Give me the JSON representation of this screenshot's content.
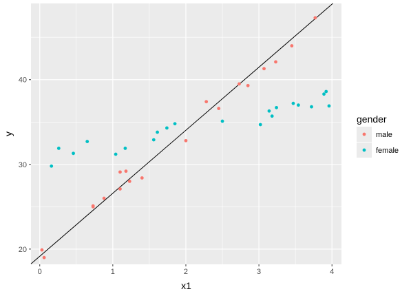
{
  "chart_data": {
    "type": "scatter",
    "xlabel": "x1",
    "ylabel": "y",
    "xlim": [
      -0.12,
      4.13
    ],
    "ylim": [
      18.2,
      49.0
    ],
    "x_ticks": [
      0,
      1,
      2,
      3,
      4
    ],
    "y_ticks": [
      20,
      30,
      40
    ],
    "x_tick_labels": [
      "0",
      "1",
      "2",
      "3",
      "4"
    ],
    "y_tick_labels": [
      "20",
      "30",
      "40"
    ],
    "grid": true,
    "legend": {
      "title": "gender",
      "position": "right"
    },
    "series": [
      {
        "name": "male",
        "color": "#F8766D",
        "points": [
          [
            0.03,
            19.9
          ],
          [
            0.06,
            19.0
          ],
          [
            0.73,
            25.0
          ],
          [
            0.73,
            25.1
          ],
          [
            0.88,
            26.0
          ],
          [
            1.1,
            29.1
          ],
          [
            1.1,
            27.1
          ],
          [
            1.18,
            29.2
          ],
          [
            1.23,
            28.0
          ],
          [
            1.4,
            28.4
          ],
          [
            2.0,
            32.8
          ],
          [
            2.28,
            37.4
          ],
          [
            2.45,
            36.6
          ],
          [
            2.73,
            39.5
          ],
          [
            2.85,
            39.3
          ],
          [
            3.07,
            41.3
          ],
          [
            3.23,
            42.1
          ],
          [
            3.45,
            44.0
          ],
          [
            3.77,
            47.3
          ]
        ]
      },
      {
        "name": "female",
        "color": "#00BFC4",
        "points": [
          [
            0.16,
            29.8
          ],
          [
            0.26,
            31.9
          ],
          [
            0.46,
            31.3
          ],
          [
            0.65,
            32.7
          ],
          [
            1.04,
            31.2
          ],
          [
            1.17,
            31.9
          ],
          [
            1.56,
            32.9
          ],
          [
            1.61,
            33.8
          ],
          [
            1.74,
            34.3
          ],
          [
            1.85,
            34.8
          ],
          [
            2.5,
            35.1
          ],
          [
            3.02,
            34.7
          ],
          [
            3.14,
            36.3
          ],
          [
            3.18,
            35.7
          ],
          [
            3.24,
            36.7
          ],
          [
            3.47,
            37.2
          ],
          [
            3.54,
            37.0
          ],
          [
            3.72,
            36.8
          ],
          [
            3.89,
            38.3
          ],
          [
            3.92,
            38.6
          ],
          [
            3.96,
            36.9
          ]
        ]
      }
    ],
    "fit_line": {
      "color": "#000000",
      "intercept": 19.15,
      "slope": 7.44
    }
  }
}
